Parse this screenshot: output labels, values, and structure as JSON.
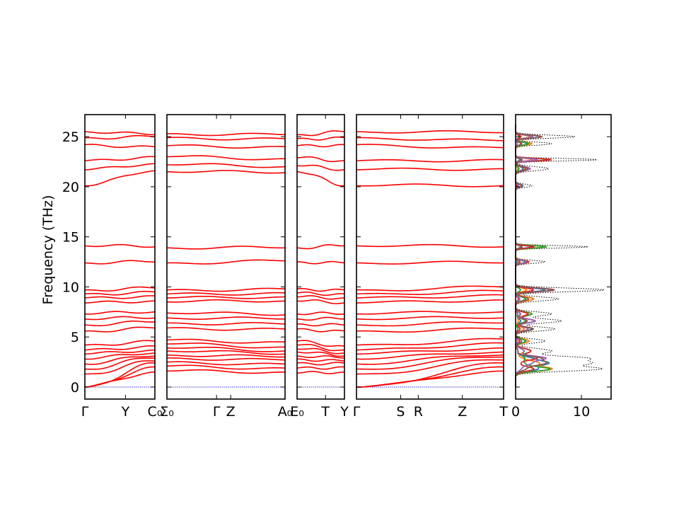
{
  "chart_data": {
    "type": "line",
    "ylabel": "Frequency (THz)",
    "ylim": [
      -1.2,
      27.2
    ],
    "yticks": [
      "0",
      "5",
      "10",
      "15",
      "20",
      "25"
    ],
    "band_color": "#ff0000",
    "zero_line_color": "#0000cc",
    "panels": [
      {
        "labels": [
          "Γ",
          "Y",
          "C₀"
        ],
        "x": [
          0,
          0.58,
          1
        ],
        "modes_start": [
          0,
          0,
          0,
          1.3,
          1.8,
          2.3,
          2.8,
          3.3,
          3.7,
          4.2,
          5.6,
          6.2,
          6.8,
          7.3,
          8.4,
          8.9,
          9.3,
          9.7,
          12.4,
          14.1,
          20.1,
          21.7,
          22.6,
          24.2,
          24.9,
          25.5
        ],
        "modes_end": [
          1.5,
          2.0,
          2.4,
          2.6,
          2.9,
          3.1,
          3.4,
          3.7,
          4.1,
          4.6,
          5.9,
          6.5,
          6.9,
          7.5,
          8.6,
          9.1,
          9.5,
          9.9,
          12.5,
          14.0,
          21.6,
          22.3,
          23.0,
          24.0,
          25.0,
          25.2
        ]
      },
      {
        "labels": [
          "Σ₀",
          "Γ",
          "Z",
          "A₀"
        ],
        "x": [
          0,
          0.42,
          0.54,
          1
        ],
        "modes_start": [
          1.6,
          2.1,
          2.5,
          2.9,
          3.2,
          3.6,
          3.9,
          4.3,
          4.7,
          5.9,
          6.4,
          6.9,
          7.4,
          8.5,
          8.9,
          9.3,
          9.7,
          12.4,
          13.9,
          21.5,
          22.2,
          23.0,
          24.1,
          24.9,
          25.3
        ],
        "modes_end": [
          1.5,
          1.9,
          2.3,
          2.7,
          3.0,
          3.3,
          3.6,
          4.0,
          4.5,
          5.8,
          6.3,
          6.8,
          7.2,
          8.6,
          9.0,
          9.4,
          9.8,
          12.6,
          13.9,
          21.4,
          22.0,
          22.8,
          24.0,
          24.8,
          25.2
        ]
      },
      {
        "labels": [
          "E₀",
          "T",
          "Y"
        ],
        "x": [
          0,
          0.6,
          1
        ],
        "modes_start": [
          1.4,
          1.9,
          2.4,
          2.8,
          3.1,
          3.5,
          3.8,
          4.2,
          4.6,
          5.8,
          6.3,
          6.8,
          7.3,
          8.6,
          9.0,
          9.4,
          9.8,
          12.5,
          13.9,
          21.5,
          22.1,
          22.9,
          24.1,
          24.8,
          25.2
        ],
        "modes_end": [
          1.5,
          2.0,
          2.4,
          2.6,
          2.9,
          3.1,
          3.4,
          3.7,
          4.1,
          5.6,
          6.2,
          6.8,
          7.3,
          8.4,
          8.9,
          9.3,
          9.7,
          12.4,
          14.1,
          20.1,
          21.7,
          22.6,
          24.2,
          24.9,
          25.5
        ]
      },
      {
        "labels": [
          "Γ",
          "S",
          "R",
          "Z",
          "T"
        ],
        "x": [
          0,
          0.3,
          0.42,
          0.72,
          1
        ],
        "modes_start": [
          0,
          0,
          0,
          1.3,
          1.8,
          2.3,
          2.8,
          3.3,
          3.7,
          4.2,
          5.6,
          6.2,
          6.8,
          7.3,
          8.4,
          8.9,
          9.3,
          9.7,
          12.4,
          14.1,
          20.1,
          21.7,
          22.6,
          24.2,
          24.9,
          25.5
        ],
        "modes_end": [
          1.6,
          2.0,
          2.4,
          2.7,
          3.0,
          3.2,
          3.5,
          3.9,
          4.4,
          4.8,
          5.8,
          6.4,
          6.9,
          7.5,
          8.7,
          9.2,
          9.6,
          10.0,
          12.4,
          14.0,
          20.1,
          21.8,
          22.7,
          23.9,
          24.6,
          25.4
        ]
      }
    ],
    "dos": {
      "xlim": [
        0,
        14.5
      ],
      "xticks": [
        "0",
        "10"
      ],
      "total_color": "#000000",
      "projected_colors": [
        "#1f77b4",
        "#ff7f0e",
        "#2ca02c",
        "#d62728",
        "#9467bd",
        "#8c564b"
      ],
      "peaks": [
        {
          "f": 1.8,
          "h": 12.5,
          "w": 0.22
        },
        {
          "f": 2.4,
          "h": 11.0,
          "w": 0.25
        },
        {
          "f": 2.9,
          "h": 9.5,
          "w": 0.2
        },
        {
          "f": 3.6,
          "h": 5.5,
          "w": 0.25
        },
        {
          "f": 4.6,
          "h": 4.5,
          "w": 0.2
        },
        {
          "f": 5.8,
          "h": 6.0,
          "w": 0.2
        },
        {
          "f": 6.6,
          "h": 7.0,
          "w": 0.2
        },
        {
          "f": 7.3,
          "h": 5.5,
          "w": 0.2
        },
        {
          "f": 8.8,
          "h": 6.5,
          "w": 0.2
        },
        {
          "f": 9.7,
          "h": 13.5,
          "w": 0.18
        },
        {
          "f": 12.5,
          "h": 4.5,
          "w": 0.15
        },
        {
          "f": 14.0,
          "h": 11.0,
          "w": 0.12
        },
        {
          "f": 20.1,
          "h": 2.5,
          "w": 0.15
        },
        {
          "f": 21.8,
          "h": 5.0,
          "w": 0.2
        },
        {
          "f": 22.7,
          "h": 12.5,
          "w": 0.12
        },
        {
          "f": 24.3,
          "h": 5.5,
          "w": 0.15
        },
        {
          "f": 25.0,
          "h": 9.0,
          "w": 0.15
        }
      ]
    }
  }
}
